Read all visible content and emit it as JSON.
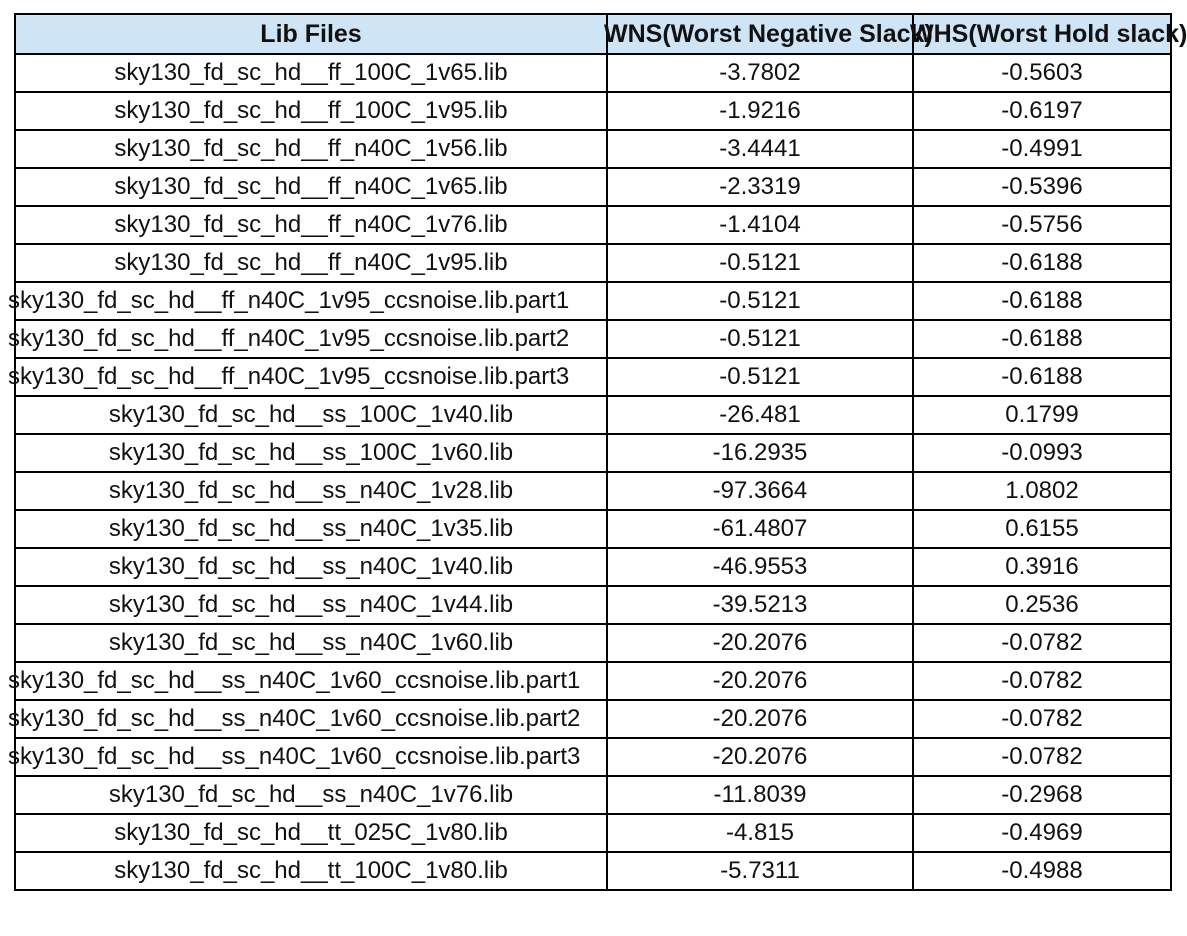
{
  "headers": [
    "Lib Files",
    "WNS(Worst Negative Slack)",
    "WHS(Worst Hold slack)"
  ],
  "rows": [
    [
      "sky130_fd_sc_hd__ff_100C_1v65.lib",
      "-3.7802",
      "-0.5603"
    ],
    [
      "sky130_fd_sc_hd__ff_100C_1v95.lib",
      "-1.9216",
      "-0.6197"
    ],
    [
      "sky130_fd_sc_hd__ff_n40C_1v56.lib",
      "-3.4441",
      "-0.4991"
    ],
    [
      "sky130_fd_sc_hd__ff_n40C_1v65.lib",
      "-2.3319",
      "-0.5396"
    ],
    [
      "sky130_fd_sc_hd__ff_n40C_1v76.lib",
      "-1.4104",
      "-0.5756"
    ],
    [
      "sky130_fd_sc_hd__ff_n40C_1v95.lib",
      "-0.5121",
      "-0.6188"
    ],
    [
      "sky130_fd_sc_hd__ff_n40C_1v95_ccsnoise.lib.part1",
      "-0.5121",
      "-0.6188"
    ],
    [
      "sky130_fd_sc_hd__ff_n40C_1v95_ccsnoise.lib.part2",
      "-0.5121",
      "-0.6188"
    ],
    [
      "sky130_fd_sc_hd__ff_n40C_1v95_ccsnoise.lib.part3",
      "-0.5121",
      "-0.6188"
    ],
    [
      "sky130_fd_sc_hd__ss_100C_1v40.lib",
      "-26.481",
      "0.1799"
    ],
    [
      "sky130_fd_sc_hd__ss_100C_1v60.lib",
      "-16.2935",
      "-0.0993"
    ],
    [
      "sky130_fd_sc_hd__ss_n40C_1v28.lib",
      "-97.3664",
      "1.0802"
    ],
    [
      "sky130_fd_sc_hd__ss_n40C_1v35.lib",
      "-61.4807",
      "0.6155"
    ],
    [
      "sky130_fd_sc_hd__ss_n40C_1v40.lib",
      "-46.9553",
      "0.3916"
    ],
    [
      "sky130_fd_sc_hd__ss_n40C_1v44.lib",
      "-39.5213",
      "0.2536"
    ],
    [
      "sky130_fd_sc_hd__ss_n40C_1v60.lib",
      "-20.2076",
      "-0.0782"
    ],
    [
      "sky130_fd_sc_hd__ss_n40C_1v60_ccsnoise.lib.part1",
      "-20.2076",
      "-0.0782"
    ],
    [
      "sky130_fd_sc_hd__ss_n40C_1v60_ccsnoise.lib.part2",
      "-20.2076",
      "-0.0782"
    ],
    [
      "sky130_fd_sc_hd__ss_n40C_1v60_ccsnoise.lib.part3",
      "-20.2076",
      "-0.0782"
    ],
    [
      "sky130_fd_sc_hd__ss_n40C_1v76.lib",
      "-11.8039",
      "-0.2968"
    ],
    [
      "sky130_fd_sc_hd__tt_025C_1v80.lib",
      "-4.815",
      "-0.4969"
    ],
    [
      "sky130_fd_sc_hd__tt_100C_1v80.lib",
      "-5.7311",
      "-0.4988"
    ]
  ],
  "colors": {
    "header_fill": "#cfe4f4",
    "grid_line": "#000000",
    "text": "#111111"
  }
}
